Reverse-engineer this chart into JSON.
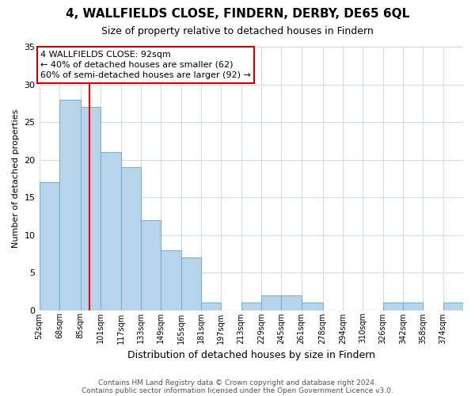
{
  "title": "4, WALLFIELDS CLOSE, FINDERN, DERBY, DE65 6QL",
  "subtitle": "Size of property relative to detached houses in Findern",
  "xlabel": "Distribution of detached houses by size in Findern",
  "ylabel": "Number of detached properties",
  "footnote1": "Contains HM Land Registry data © Crown copyright and database right 2024.",
  "footnote2": "Contains public sector information licensed under the Open Government Licence v3.0.",
  "bar_labels": [
    "52sqm",
    "68sqm",
    "85sqm",
    "101sqm",
    "117sqm",
    "133sqm",
    "149sqm",
    "165sqm",
    "181sqm",
    "197sqm",
    "213sqm",
    "229sqm",
    "245sqm",
    "261sqm",
    "278sqm",
    "294sqm",
    "310sqm",
    "326sqm",
    "342sqm",
    "358sqm",
    "374sqm"
  ],
  "bar_values": [
    17,
    28,
    27,
    21,
    19,
    12,
    8,
    7,
    1,
    0,
    1,
    2,
    2,
    1,
    0,
    0,
    0,
    1,
    1,
    0,
    1
  ],
  "bar_edges": [
    52,
    68,
    85,
    101,
    117,
    133,
    149,
    165,
    181,
    197,
    213,
    229,
    245,
    261,
    278,
    294,
    310,
    326,
    342,
    358,
    374,
    390
  ],
  "bar_color": "#b8d4ea",
  "bar_edgecolor": "#7ab0d4",
  "redline_x": 92,
  "ylim": [
    0,
    35
  ],
  "yticks": [
    0,
    5,
    10,
    15,
    20,
    25,
    30,
    35
  ],
  "annotation_title": "4 WALLFIELDS CLOSE: 92sqm",
  "annotation_line1": "← 40% of detached houses are smaller (62)",
  "annotation_line2": "60% of semi-detached houses are larger (92) →",
  "annotation_box_color": "#ffffff",
  "annotation_box_edgecolor": "#cc0000",
  "grid_color": "#d0dce8",
  "background_color": "#ffffff"
}
